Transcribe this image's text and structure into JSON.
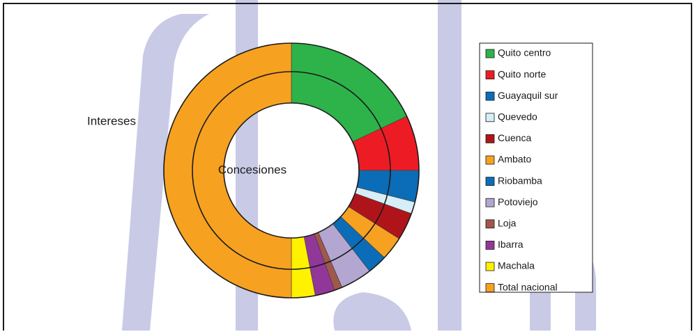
{
  "chart_data": {
    "type": "doughnut",
    "categories": [
      "Quito centro",
      "Quito norte",
      "Guayaquil sur",
      "Quevedo",
      "Cuenca",
      "Ambato",
      "Riobamba",
      "Potoviejo",
      "Loja",
      "Ibarra",
      "Machala",
      "Total nacional"
    ],
    "colors": [
      "#2db34a",
      "#ed1c24",
      "#0b6db7",
      "#d5eef8",
      "#b0141b",
      "#f7a121",
      "#0b6db7",
      "#b3a6d1",
      "#a0584a",
      "#92379a",
      "#fff200",
      "#f7a121"
    ],
    "series": [
      {
        "name": "Intereses",
        "values": [
          18,
          7,
          4,
          1.5,
          3.5,
          3,
          2.5,
          4,
          1,
          2.5,
          3,
          50
        ]
      },
      {
        "name": "Concesiones",
        "values": [
          18,
          7,
          4,
          1.5,
          3.5,
          3,
          2.5,
          4,
          1,
          2.5,
          3,
          50
        ]
      }
    ],
    "legend": "right"
  }
}
